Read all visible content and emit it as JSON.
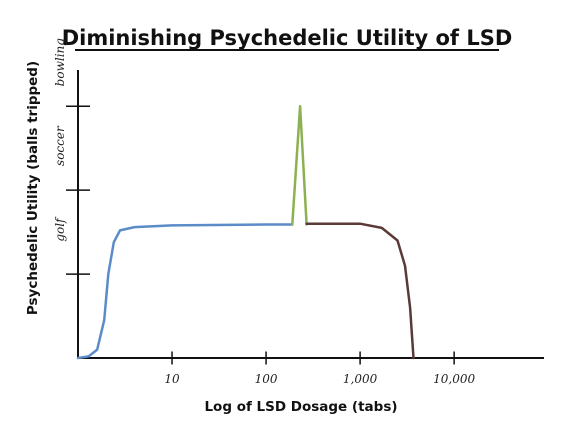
{
  "chart_data": {
    "type": "line",
    "title": "Diminishing Psychedelic Utility of LSD",
    "xlabel": "Log of LSD Dosage (tabs)",
    "ylabel": "Psychedelic Utility (balls tripped)",
    "x_scale": "log",
    "xlim": [
      1,
      30000
    ],
    "x_ticks": [
      {
        "value": 10,
        "label": "10"
      },
      {
        "value": 100,
        "label": "100"
      },
      {
        "value": 1000,
        "label": "1,000"
      },
      {
        "value": 10000,
        "label": "10,000"
      }
    ],
    "ylim": [
      0,
      3.05
    ],
    "y_ticks": [
      {
        "value": 1,
        "label": "golf"
      },
      {
        "value": 2,
        "label": "soccer"
      },
      {
        "value": 3,
        "label": "bowling"
      }
    ],
    "grid": false,
    "series": [
      {
        "color": "#5b8cc8",
        "points": [
          [
            1,
            0.0
          ],
          [
            1.3,
            0.02
          ],
          [
            1.6,
            0.1
          ],
          [
            1.9,
            0.45
          ],
          [
            2.1,
            1.0
          ],
          [
            2.4,
            1.38
          ],
          [
            2.8,
            1.52
          ],
          [
            4,
            1.56
          ],
          [
            10,
            1.58
          ],
          [
            100,
            1.59
          ],
          [
            190,
            1.59
          ]
        ]
      },
      {
        "color": "#8bb152",
        "points": [
          [
            190,
            1.59
          ],
          [
            230,
            3.0
          ],
          [
            270,
            1.59
          ]
        ]
      },
      {
        "color": "#5a3a38",
        "points": [
          [
            270,
            1.6
          ],
          [
            1000,
            1.6
          ],
          [
            1700,
            1.55
          ],
          [
            2500,
            1.4
          ],
          [
            3000,
            1.1
          ],
          [
            3400,
            0.6
          ],
          [
            3700,
            0.0
          ]
        ]
      }
    ]
  }
}
